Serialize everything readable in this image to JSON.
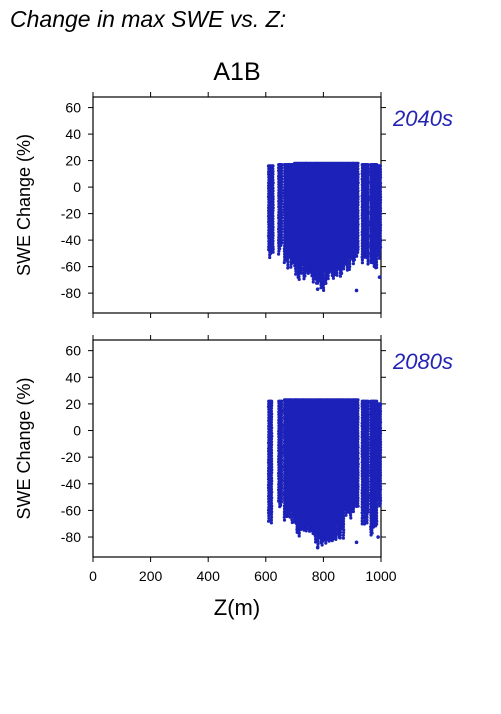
{
  "page_title": "Change in max SWE vs. Z:",
  "chart_data": {
    "type": "scatter",
    "title": "A1B",
    "xlabel": "Z(m)",
    "ylabel": "SWE Change (%)",
    "xlim": [
      0,
      1000
    ],
    "ylim": [
      -95,
      68
    ],
    "xticks": [
      0,
      200,
      400,
      600,
      800,
      1000
    ],
    "yticks": [
      -80,
      -60,
      -40,
      -20,
      0,
      20,
      40,
      60
    ],
    "grid": false,
    "marker_color": "#1c22b8",
    "label_color": "#2424b4",
    "panels": [
      {
        "period": "2040s",
        "columns": [
          {
            "x": [
              610,
              625
            ],
            "y_range": [
              -55,
              16
            ]
          },
          {
            "x": [
              645,
              655
            ],
            "y_range": [
              -52,
              17
            ]
          },
          {
            "x": [
              665,
              695
            ],
            "y_range": [
              -62,
              17
            ]
          },
          {
            "x": [
              700,
              760
            ],
            "y_range": [
              -70,
              18
            ]
          },
          {
            "x": [
              765,
              800
            ],
            "y_range": [
              -78,
              18
            ]
          },
          {
            "x": [
              805,
              835
            ],
            "y_range": [
              -73,
              18
            ]
          },
          {
            "x": [
              840,
              870
            ],
            "y_range": [
              -68,
              18
            ]
          },
          {
            "x": [
              875,
              895
            ],
            "y_range": [
              -63,
              18
            ]
          },
          {
            "x": [
              900,
              920
            ],
            "y_range": [
              -58,
              18
            ]
          },
          {
            "x": [
              935,
              955
            ],
            "y_range": [
              -62,
              17
            ]
          },
          {
            "x": [
              965,
              985
            ],
            "y_range": [
              -63,
              17
            ]
          },
          {
            "x": [
              992,
              998
            ],
            "y_range": [
              -55,
              16
            ]
          }
        ],
        "outliers": [
          {
            "x": 915,
            "y": -78
          },
          {
            "x": 780,
            "y": -77
          },
          {
            "x": 995,
            "y": -68
          }
        ]
      },
      {
        "period": "2080s",
        "columns": [
          {
            "x": [
              610,
              620
            ],
            "y_range": [
              -70,
              22
            ]
          },
          {
            "x": [
              645,
              655
            ],
            "y_range": [
              -65,
              22
            ]
          },
          {
            "x": [
              665,
              695
            ],
            "y_range": [
              -70,
              23
            ]
          },
          {
            "x": [
              700,
              760
            ],
            "y_range": [
              -80,
              23
            ]
          },
          {
            "x": [
              765,
              800
            ],
            "y_range": [
              -88,
              23
            ]
          },
          {
            "x": [
              805,
              835
            ],
            "y_range": [
              -86,
              23
            ]
          },
          {
            "x": [
              840,
              870
            ],
            "y_range": [
              -82,
              23
            ]
          },
          {
            "x": [
              875,
              895
            ],
            "y_range": [
              -70,
              23
            ]
          },
          {
            "x": [
              900,
              920
            ],
            "y_range": [
              -65,
              23
            ]
          },
          {
            "x": [
              935,
              955
            ],
            "y_range": [
              -72,
              22
            ]
          },
          {
            "x": [
              965,
              985
            ],
            "y_range": [
              -80,
              22
            ]
          },
          {
            "x": [
              992,
              998
            ],
            "y_range": [
              -62,
              20
            ]
          }
        ],
        "outliers": [
          {
            "x": 780,
            "y": -88
          },
          {
            "x": 915,
            "y": -84
          },
          {
            "x": 990,
            "y": -80
          }
        ]
      }
    ]
  }
}
